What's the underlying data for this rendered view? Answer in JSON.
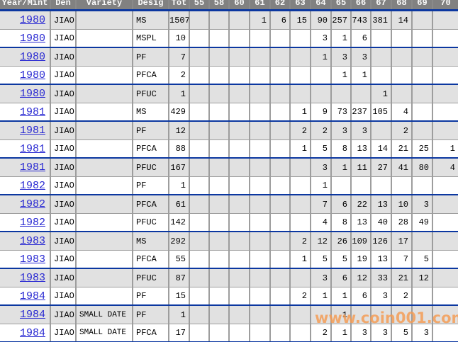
{
  "table": {
    "columns": [
      "Year/Mint",
      "Den",
      "Variety",
      "Desig",
      "Tot",
      "55",
      "58",
      "60",
      "61",
      "62",
      "63",
      "64",
      "65",
      "66",
      "67",
      "68",
      "69",
      "70"
    ],
    "rows": [
      {
        "year": "1980",
        "den": "JIAO",
        "variety": "",
        "desig": "MS",
        "tot": "1507",
        "grades": [
          "",
          "",
          "",
          "1",
          "6",
          "15",
          "90",
          "257",
          "743",
          "381",
          "14",
          "",
          ""
        ]
      },
      {
        "year": "1980",
        "den": "JIAO",
        "variety": "",
        "desig": "MSPL",
        "tot": "10",
        "grades": [
          "",
          "",
          "",
          "",
          "",
          "",
          "3",
          "1",
          "6",
          "",
          "",
          "",
          ""
        ]
      },
      {
        "year": "1980",
        "den": "JIAO",
        "variety": "",
        "desig": "PF",
        "tot": "7",
        "grades": [
          "",
          "",
          "",
          "",
          "",
          "",
          "1",
          "3",
          "3",
          "",
          "",
          "",
          ""
        ]
      },
      {
        "year": "1980",
        "den": "JIAO",
        "variety": "",
        "desig": "PFCA",
        "tot": "2",
        "grades": [
          "",
          "",
          "",
          "",
          "",
          "",
          "",
          "1",
          "1",
          "",
          "",
          "",
          ""
        ]
      },
      {
        "year": "1980",
        "den": "JIAO",
        "variety": "",
        "desig": "PFUC",
        "tot": "1",
        "grades": [
          "",
          "",
          "",
          "",
          "",
          "",
          "",
          "",
          "",
          "1",
          "",
          "",
          ""
        ]
      },
      {
        "year": "1981",
        "den": "JIAO",
        "variety": "",
        "desig": "MS",
        "tot": "429",
        "grades": [
          "",
          "",
          "",
          "",
          "",
          "1",
          "9",
          "73",
          "237",
          "105",
          "4",
          "",
          ""
        ]
      },
      {
        "year": "1981",
        "den": "JIAO",
        "variety": "",
        "desig": "PF",
        "tot": "12",
        "grades": [
          "",
          "",
          "",
          "",
          "",
          "2",
          "2",
          "3",
          "3",
          "",
          "2",
          "",
          ""
        ]
      },
      {
        "year": "1981",
        "den": "JIAO",
        "variety": "",
        "desig": "PFCA",
        "tot": "88",
        "grades": [
          "",
          "",
          "",
          "",
          "",
          "1",
          "5",
          "8",
          "13",
          "14",
          "21",
          "25",
          "1"
        ]
      },
      {
        "year": "1981",
        "den": "JIAO",
        "variety": "",
        "desig": "PFUC",
        "tot": "167",
        "grades": [
          "",
          "",
          "",
          "",
          "",
          "",
          "3",
          "1",
          "11",
          "27",
          "41",
          "80",
          "4"
        ]
      },
      {
        "year": "1982",
        "den": "JIAO",
        "variety": "",
        "desig": "PF",
        "tot": "1",
        "grades": [
          "",
          "",
          "",
          "",
          "",
          "",
          "1",
          "",
          "",
          "",
          "",
          "",
          ""
        ]
      },
      {
        "year": "1982",
        "den": "JIAO",
        "variety": "",
        "desig": "PFCA",
        "tot": "61",
        "grades": [
          "",
          "",
          "",
          "",
          "",
          "",
          "7",
          "6",
          "22",
          "13",
          "10",
          "3",
          ""
        ]
      },
      {
        "year": "1982",
        "den": "JIAO",
        "variety": "",
        "desig": "PFUC",
        "tot": "142",
        "grades": [
          "",
          "",
          "",
          "",
          "",
          "",
          "4",
          "8",
          "13",
          "40",
          "28",
          "49",
          ""
        ]
      },
      {
        "year": "1983",
        "den": "JIAO",
        "variety": "",
        "desig": "MS",
        "tot": "292",
        "grades": [
          "",
          "",
          "",
          "",
          "",
          "2",
          "12",
          "26",
          "109",
          "126",
          "17",
          "",
          ""
        ]
      },
      {
        "year": "1983",
        "den": "JIAO",
        "variety": "",
        "desig": "PFCA",
        "tot": "55",
        "grades": [
          "",
          "",
          "",
          "",
          "",
          "1",
          "5",
          "5",
          "19",
          "13",
          "7",
          "5",
          ""
        ]
      },
      {
        "year": "1983",
        "den": "JIAO",
        "variety": "",
        "desig": "PFUC",
        "tot": "87",
        "grades": [
          "",
          "",
          "",
          "",
          "",
          "",
          "3",
          "6",
          "12",
          "33",
          "21",
          "12",
          ""
        ]
      },
      {
        "year": "1984",
        "den": "JIAO",
        "variety": "",
        "desig": "PF",
        "tot": "15",
        "grades": [
          "",
          "",
          "",
          "",
          "",
          "2",
          "1",
          "1",
          "6",
          "3",
          "2",
          "",
          ""
        ]
      },
      {
        "year": "1984",
        "den": "JIAO",
        "variety": "SMALL DATE",
        "desig": "PF",
        "tot": "1",
        "grades": [
          "",
          "",
          "",
          "",
          "",
          "",
          "",
          "1",
          "",
          "",
          "",
          "",
          ""
        ]
      },
      {
        "year": "1984",
        "den": "JIAO",
        "variety": "SMALL DATE",
        "desig": "PFCA",
        "tot": "17",
        "grades": [
          "",
          "",
          "",
          "",
          "",
          "",
          "2",
          "1",
          "3",
          "3",
          "5",
          "3",
          ""
        ]
      }
    ]
  },
  "watermark": {
    "text": "www.coin001.com"
  },
  "colors": {
    "header_bg": "#818181",
    "header_text": "#FBFBFB",
    "separator_blue": "#0B37A0",
    "border_gray": "#9D9D9D",
    "row_alt_bg": "#E1E1E1",
    "link_blue": "#2A2AD2",
    "watermark_orange": "#F59B52"
  }
}
